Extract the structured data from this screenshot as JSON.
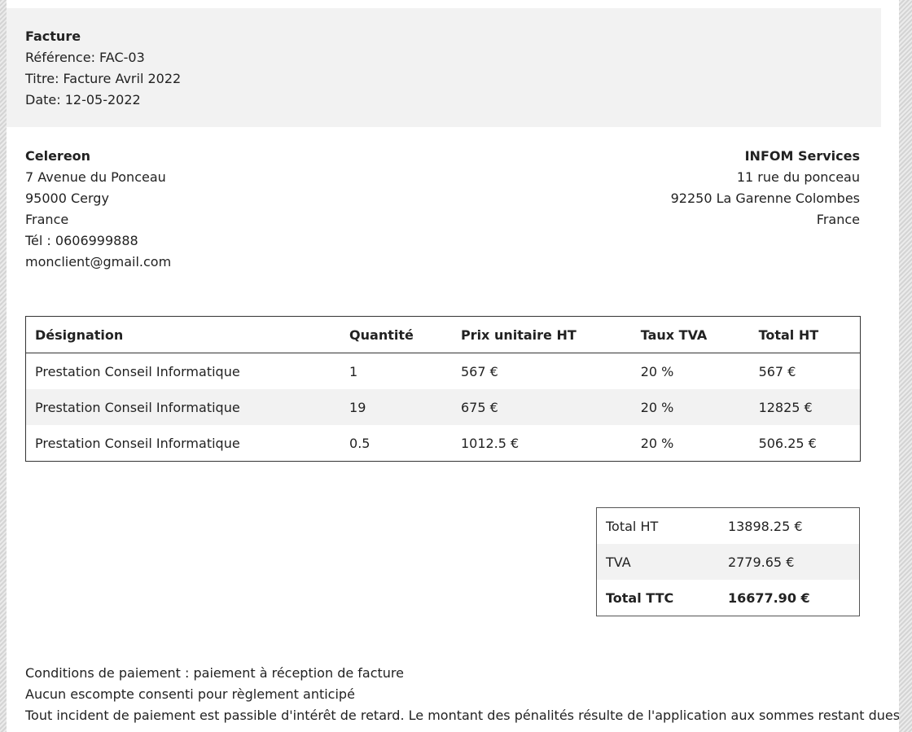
{
  "invoice": {
    "heading": "Facture",
    "reference": "Référence: FAC-03",
    "title": "Titre: Facture Avril 2022",
    "date": "Date: 12-05-2022"
  },
  "client": {
    "name": "Celereon",
    "street": "7 Avenue du Ponceau",
    "city": "95000 Cergy",
    "country": "France",
    "phone": "Tél : 0606999888",
    "email": "monclient@gmail.com"
  },
  "provider": {
    "name": "INFOM Services",
    "street": "11 rue du ponceau",
    "city": "92250 La Garenne Colombes",
    "country": "France"
  },
  "items_table": {
    "headers": [
      "Désignation",
      "Quantité",
      "Prix unitaire HT",
      "Taux TVA",
      "Total HT"
    ],
    "rows": [
      [
        "Prestation Conseil Informatique",
        "1",
        "567 €",
        "20 %",
        "567 €"
      ],
      [
        "Prestation Conseil Informatique",
        "19",
        "675 €",
        "20 %",
        "12825 €"
      ],
      [
        "Prestation Conseil Informatique",
        "0.5",
        "1012.5 €",
        "20 %",
        "506.25 €"
      ]
    ]
  },
  "totals": [
    {
      "label": "Total HT",
      "value": "13898.25 €"
    },
    {
      "label": "TVA",
      "value": "2779.65 €"
    },
    {
      "label": "Total TTC",
      "value": "16677.90 €"
    }
  ],
  "conditions": [
    "Conditions de paiement : paiement à réception de facture",
    "Aucun escompte consenti pour règlement anticipé",
    "Tout incident de paiement est passible d'intérêt de retard. Le montant des pénalités résulte de l'application aux sommes restant dues"
  ]
}
